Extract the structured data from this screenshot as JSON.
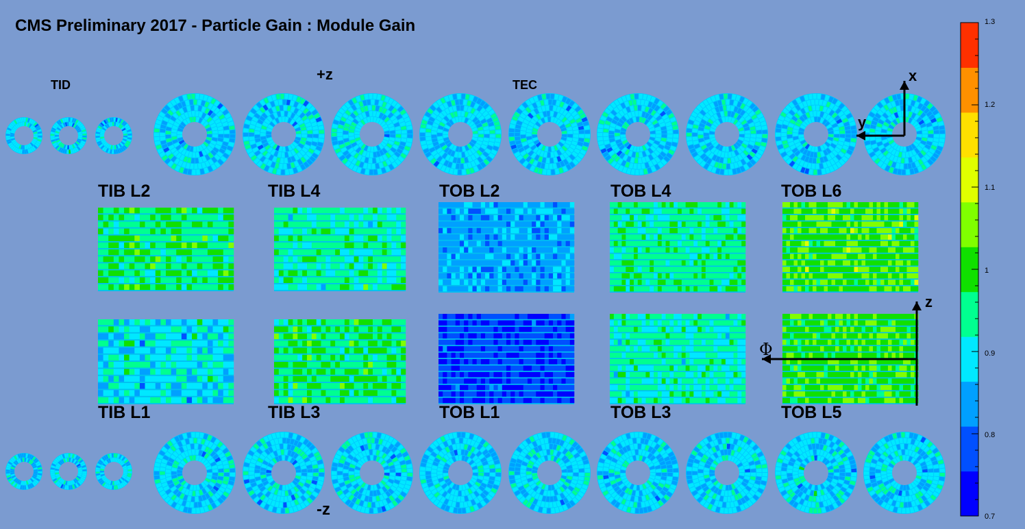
{
  "title": "CMS Preliminary 2017  -  Particle Gain : Module Gain",
  "region_labels": {
    "tid": "TID",
    "tec": "TEC",
    "plus_z": "+z",
    "minus_z": "-z"
  },
  "barrel_layers": {
    "top_row": [
      "TIB L2",
      "TIB L4",
      "TOB L2",
      "TOB L4",
      "TOB L6"
    ],
    "bottom_row": [
      "TIB L1",
      "TIB L3",
      "TOB L1",
      "TOB L3",
      "TOB L5"
    ]
  },
  "axis_labels": {
    "x": "x",
    "y": "y",
    "z": "z",
    "phi": "Φ"
  },
  "colorbar": {
    "min": 0.7,
    "max": 1.3,
    "tick_labels": [
      "1.3",
      "1.2",
      "1.1",
      "1",
      "0.9",
      "0.8",
      "0.7"
    ],
    "colors": [
      "#0000ff",
      "#0050ff",
      "#00a0ff",
      "#00e8ff",
      "#00ff90",
      "#10e000",
      "#80ff00",
      "#e0ff00",
      "#ffe000",
      "#ff9000",
      "#ff3000"
    ]
  },
  "panel_profiles": {
    "tib_l2": {
      "mean": 0.97,
      "spread": 0.06
    },
    "tib_l4": {
      "mean": 0.94,
      "spread": 0.06
    },
    "tob_l2": {
      "mean": 0.84,
      "spread": 0.05
    },
    "tob_l4": {
      "mean": 0.95,
      "spread": 0.05
    },
    "tob_l6": {
      "mean": 1.02,
      "spread": 0.05
    },
    "tib_l1": {
      "mean": 0.9,
      "spread": 0.08
    },
    "tib_l3": {
      "mean": 0.97,
      "spread": 0.06
    },
    "tob_l1": {
      "mean": 0.76,
      "spread": 0.04
    },
    "tob_l3": {
      "mean": 0.93,
      "spread": 0.05
    },
    "tob_l5": {
      "mean": 1.01,
      "spread": 0.05
    },
    "disks": {
      "mean": 0.88,
      "spread": 0.06
    }
  }
}
